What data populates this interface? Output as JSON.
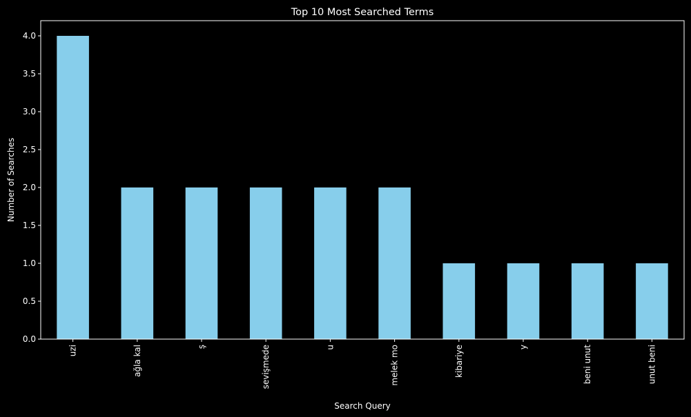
{
  "chart_data": {
    "type": "bar",
    "title": "Top 10 Most Searched Terms",
    "xlabel": "Search Query",
    "ylabel": "Number of Searches",
    "categories": [
      "uzi",
      "ağla kal",
      "ş",
      "sevişmede",
      "u",
      "melek mo",
      "kibariye",
      "y",
      "beni unut",
      "unut beni"
    ],
    "values": [
      4,
      2,
      2,
      2,
      2,
      2,
      1,
      1,
      1,
      1
    ],
    "ylim": [
      0,
      4.2
    ],
    "yticks": [
      "0.0",
      "0.5",
      "1.0",
      "1.5",
      "2.0",
      "2.5",
      "3.0",
      "3.5",
      "4.0"
    ],
    "grid": false,
    "legend": "none",
    "colors": {
      "background": "#000000",
      "bar": "#87ceeb",
      "axis": "#ffffff",
      "text": "#ffffff"
    }
  }
}
